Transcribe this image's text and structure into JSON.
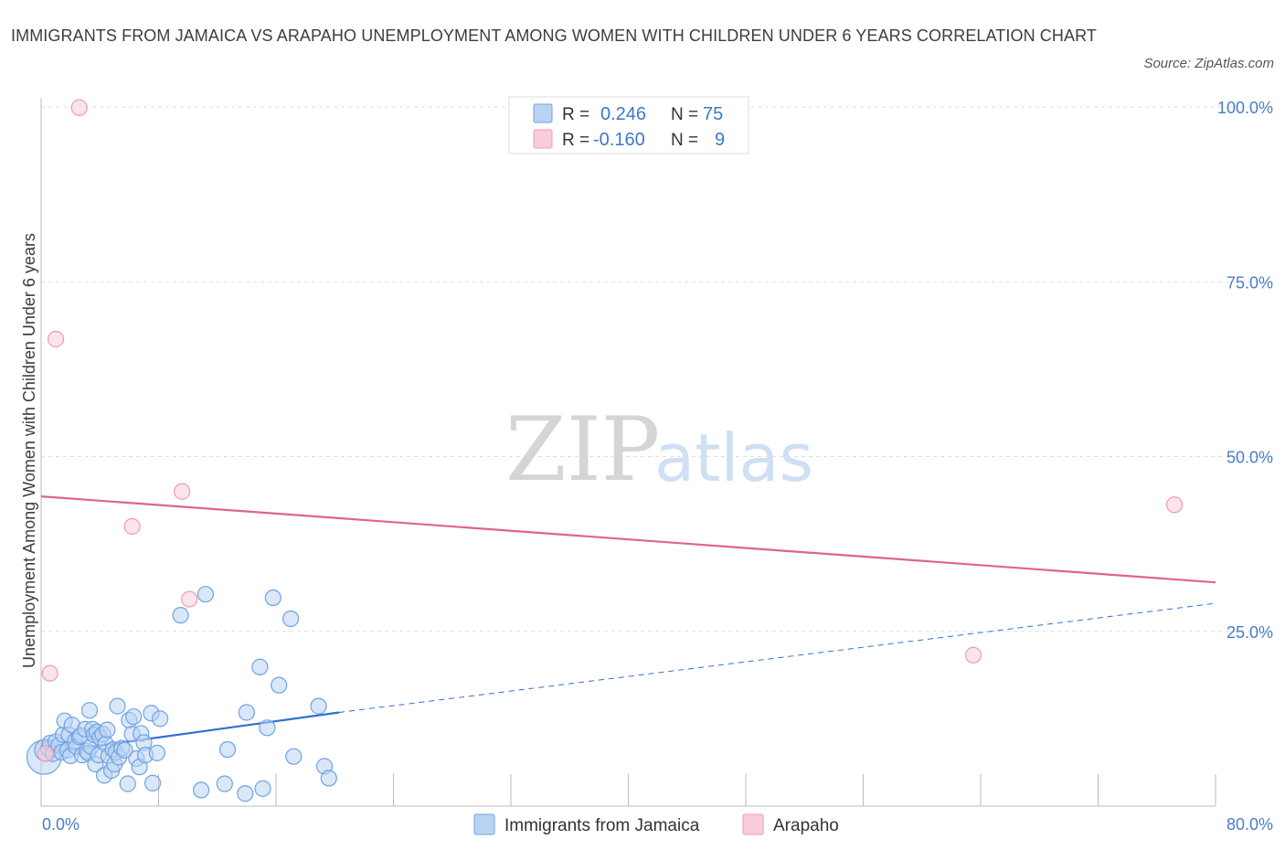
{
  "chart_data": {
    "type": "scatter",
    "title": "IMMIGRANTS FROM JAMAICA VS ARAPAHO UNEMPLOYMENT AMONG WOMEN WITH CHILDREN UNDER 6 YEARS CORRELATION CHART",
    "source": "Source: ZipAtlas.com",
    "watermark": {
      "zip": "ZIP",
      "atlas": "atlas"
    },
    "ylabel": "Unemployment Among Women with Children Under 6 years",
    "xlim": [
      0,
      80
    ],
    "ylim": [
      0,
      100
    ],
    "x_tick_labels": [
      "0.0%",
      "80.0%"
    ],
    "y_ticks": [
      25,
      50,
      75,
      100
    ],
    "y_tick_labels": [
      "25.0%",
      "50.0%",
      "75.0%",
      "100.0%"
    ],
    "legend": [
      {
        "r_label": "R =",
        "r_value": "0.246",
        "n_label": "N =",
        "n_value": "75",
        "color": "#a9c8f0"
      },
      {
        "r_label": "R =",
        "r_value": "-0.160",
        "n_label": "N =",
        "n_value": "9",
        "color": "#f7bfd0"
      }
    ],
    "series": [
      {
        "name": "Immigrants from Jamaica",
        "color": "#6fa3e3",
        "fill": "#b9d3f3",
        "line_color": "#2f6fd0",
        "trend": {
          "x0": 0,
          "y0": 7.5,
          "x1": 20.3,
          "y1": 13.4,
          "dash_to_x": 80,
          "dash_to_y": 29
        },
        "points": [
          [
            0.2,
            7.0,
            22
          ],
          [
            0.3,
            8.0,
            14
          ],
          [
            0.5,
            8.2,
            10
          ],
          [
            0.6,
            9.0,
            10
          ],
          [
            0.8,
            7.5,
            10
          ],
          [
            1.0,
            9.2,
            10
          ],
          [
            1.2,
            8.7,
            10
          ],
          [
            1.4,
            7.7,
            10
          ],
          [
            1.5,
            10.2,
            10
          ],
          [
            1.6,
            12.2,
            10
          ],
          [
            1.8,
            8.0,
            10
          ],
          [
            1.9,
            10.2,
            10
          ],
          [
            2.0,
            7.2,
            10
          ],
          [
            2.1,
            11.6,
            10
          ],
          [
            2.3,
            9.3,
            10
          ],
          [
            2.4,
            8.5,
            10
          ],
          [
            2.6,
            9.9,
            10
          ],
          [
            2.7,
            10.1,
            10
          ],
          [
            2.8,
            7.3,
            10
          ],
          [
            3.0,
            11.0,
            10
          ],
          [
            3.1,
            7.9,
            10
          ],
          [
            3.2,
            7.6,
            10
          ],
          [
            3.3,
            13.7,
            10
          ],
          [
            3.4,
            8.5,
            10
          ],
          [
            3.5,
            11.0,
            10
          ],
          [
            3.6,
            10.2,
            10
          ],
          [
            3.7,
            6.0,
            10
          ],
          [
            3.8,
            10.6,
            10
          ],
          [
            3.9,
            7.3,
            10
          ],
          [
            4.0,
            9.8,
            10
          ],
          [
            4.2,
            10.3,
            10
          ],
          [
            4.3,
            4.4,
            10
          ],
          [
            4.4,
            8.9,
            10
          ],
          [
            4.5,
            10.9,
            10
          ],
          [
            4.6,
            7.2,
            10
          ],
          [
            4.8,
            5.1,
            10
          ],
          [
            4.9,
            8.1,
            10
          ],
          [
            5.0,
            6.0,
            10
          ],
          [
            5.1,
            7.7,
            10
          ],
          [
            5.2,
            14.3,
            10
          ],
          [
            5.3,
            7.0,
            10
          ],
          [
            5.5,
            8.3,
            10
          ],
          [
            5.7,
            8.0,
            10
          ],
          [
            5.9,
            3.2,
            10
          ],
          [
            6.0,
            12.3,
            10
          ],
          [
            6.2,
            10.3,
            10
          ],
          [
            6.3,
            12.8,
            10
          ],
          [
            6.5,
            6.8,
            10
          ],
          [
            6.7,
            5.6,
            10
          ],
          [
            6.8,
            10.4,
            10
          ],
          [
            7.0,
            9.1,
            10
          ],
          [
            7.1,
            7.3,
            10
          ],
          [
            7.5,
            13.3,
            10
          ],
          [
            7.6,
            3.3,
            10
          ],
          [
            7.9,
            7.6,
            10
          ],
          [
            8.1,
            12.5,
            10
          ],
          [
            9.5,
            27.3,
            10
          ],
          [
            11.2,
            30.3,
            10
          ],
          [
            10.9,
            2.3,
            10
          ],
          [
            12.5,
            3.2,
            10
          ],
          [
            12.7,
            8.1,
            10
          ],
          [
            13.9,
            1.8,
            10
          ],
          [
            14.0,
            13.4,
            10
          ],
          [
            14.9,
            19.9,
            10
          ],
          [
            15.1,
            2.5,
            10
          ],
          [
            15.4,
            11.2,
            10
          ],
          [
            15.8,
            29.8,
            10
          ],
          [
            16.2,
            17.3,
            10
          ],
          [
            17.0,
            26.8,
            10
          ],
          [
            17.2,
            7.1,
            10
          ],
          [
            18.9,
            14.3,
            10
          ],
          [
            19.3,
            5.7,
            10
          ],
          [
            19.6,
            4.0,
            10
          ]
        ]
      },
      {
        "name": "Arapaho",
        "color": "#f09ab5",
        "fill": "#f9cdda",
        "line_color": "#e0648c",
        "trend": {
          "x0": 0,
          "y0": 44.3,
          "x1": 80,
          "y1": 32.0
        },
        "points": [
          [
            0.3,
            7.5,
            10
          ],
          [
            0.6,
            19.0,
            10
          ],
          [
            1.0,
            66.8,
            10
          ],
          [
            2.6,
            99.9,
            10
          ],
          [
            6.2,
            40.0,
            10
          ],
          [
            9.6,
            45.0,
            10
          ],
          [
            10.1,
            29.6,
            10
          ],
          [
            63.5,
            21.6,
            10
          ],
          [
            77.2,
            43.1,
            10
          ]
        ]
      }
    ]
  }
}
